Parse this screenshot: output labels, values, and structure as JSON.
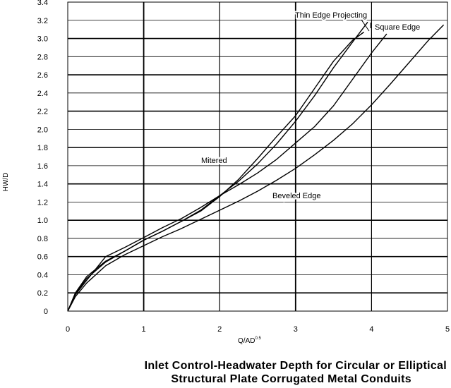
{
  "chart_data": {
    "type": "line",
    "title": "Inlet Control-Headwater Depth for Circular or Elliptical Structural Plate Corrugated Metal Conduits",
    "title_lines": [
      "Inlet Control-Headwater Depth for Circular or Elliptical",
      "Structural Plate Corrugated Metal Conduits"
    ],
    "xlabel": "Q/AD",
    "xlabel_superscript": "0.5",
    "ylabel": "HW/D",
    "xlim": [
      0,
      5
    ],
    "ylim": [
      0,
      3.4
    ],
    "x_ticks": [
      "0",
      "1",
      "2",
      "3",
      "4",
      "5"
    ],
    "y_ticks": [
      "0",
      "0.2",
      "0.4",
      "0.6",
      "0.8",
      "1.0",
      "1.2",
      "1.4",
      "1.6",
      "1.8",
      "2.0",
      "2.2",
      "2.4",
      "2.6",
      "2.8",
      "3.0",
      "3.2",
      "3.4"
    ],
    "grid": true,
    "series": [
      {
        "name": "Thin Edge Projecting",
        "points": [
          [
            0,
            0
          ],
          [
            0.1,
            0.2
          ],
          [
            0.25,
            0.38
          ],
          [
            0.5,
            0.55
          ],
          [
            0.75,
            0.66
          ],
          [
            1.0,
            0.78
          ],
          [
            1.25,
            0.88
          ],
          [
            1.5,
            0.99
          ],
          [
            1.75,
            1.1
          ],
          [
            2.0,
            1.26
          ],
          [
            2.25,
            1.45
          ],
          [
            2.5,
            1.68
          ],
          [
            2.75,
            1.92
          ],
          [
            3.0,
            2.15
          ],
          [
            3.25,
            2.45
          ],
          [
            3.5,
            2.75
          ],
          [
            3.75,
            2.98
          ],
          [
            3.9,
            3.07
          ]
        ]
      },
      {
        "name": "Square Edge",
        "points": [
          [
            0,
            0
          ],
          [
            0.1,
            0.19
          ],
          [
            0.25,
            0.36
          ],
          [
            0.5,
            0.54
          ],
          [
            0.75,
            0.66
          ],
          [
            1.0,
            0.78
          ],
          [
            1.25,
            0.88
          ],
          [
            1.5,
            0.99
          ],
          [
            1.75,
            1.11
          ],
          [
            2.0,
            1.27
          ],
          [
            2.25,
            1.43
          ],
          [
            2.5,
            1.62
          ],
          [
            2.75,
            1.84
          ],
          [
            3.0,
            2.09
          ],
          [
            3.25,
            2.37
          ],
          [
            3.5,
            2.68
          ],
          [
            3.75,
            2.96
          ],
          [
            3.95,
            3.18
          ]
        ]
      },
      {
        "name": "Mitered",
        "points": [
          [
            0,
            0
          ],
          [
            0.1,
            0.18
          ],
          [
            0.25,
            0.34
          ],
          [
            0.5,
            0.6
          ],
          [
            0.75,
            0.7
          ],
          [
            1.0,
            0.81
          ],
          [
            1.25,
            0.92
          ],
          [
            1.5,
            1.02
          ],
          [
            1.75,
            1.14
          ],
          [
            2.0,
            1.27
          ],
          [
            2.25,
            1.39
          ],
          [
            2.5,
            1.52
          ],
          [
            2.75,
            1.67
          ],
          [
            3.0,
            1.85
          ],
          [
            3.25,
            2.03
          ],
          [
            3.5,
            2.26
          ],
          [
            3.75,
            2.55
          ],
          [
            4.0,
            2.84
          ],
          [
            4.2,
            3.05
          ]
        ]
      },
      {
        "name": "Beveled Edge",
        "points": [
          [
            0,
            0
          ],
          [
            0.1,
            0.16
          ],
          [
            0.25,
            0.31
          ],
          [
            0.5,
            0.5
          ],
          [
            0.75,
            0.62
          ],
          [
            1.0,
            0.72
          ],
          [
            1.25,
            0.82
          ],
          [
            1.5,
            0.91
          ],
          [
            1.75,
            1.01
          ],
          [
            2.0,
            1.11
          ],
          [
            2.25,
            1.21
          ],
          [
            2.5,
            1.32
          ],
          [
            2.75,
            1.44
          ],
          [
            3.0,
            1.57
          ],
          [
            3.25,
            1.72
          ],
          [
            3.5,
            1.88
          ],
          [
            3.75,
            2.06
          ],
          [
            4.0,
            2.27
          ],
          [
            4.25,
            2.5
          ],
          [
            4.5,
            2.74
          ],
          [
            4.75,
            2.98
          ],
          [
            4.95,
            3.15
          ]
        ]
      }
    ],
    "colors": {
      "background": "#ffffff",
      "line": "#000000",
      "grid": "#000000"
    }
  }
}
